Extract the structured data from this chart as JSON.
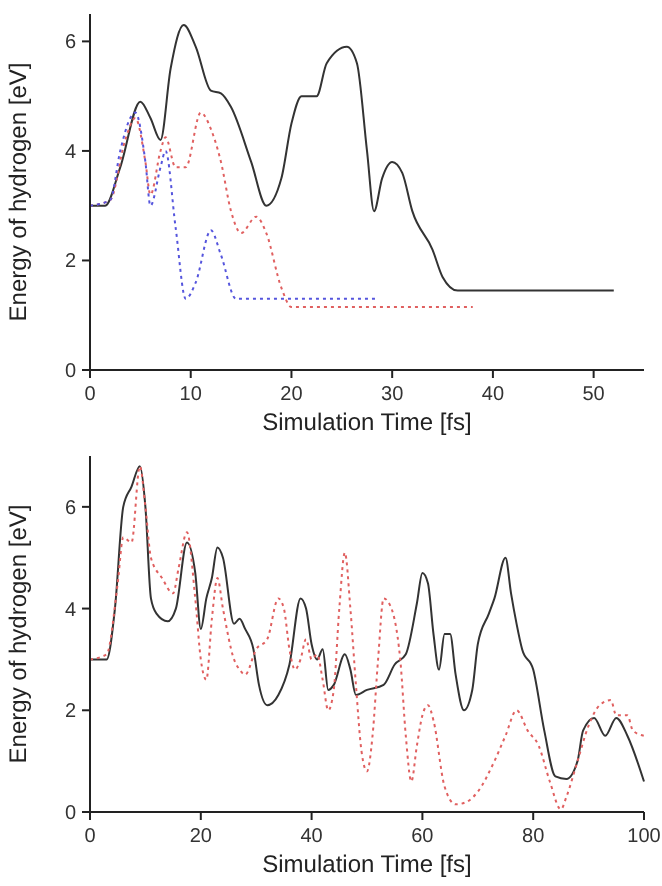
{
  "chart_data": [
    {
      "type": "line",
      "xlabel": "Simulation Time [fs]",
      "ylabel": "Energy of hydrogen [eV]",
      "xlim": [
        0,
        55
      ],
      "xticks": [
        0,
        10,
        20,
        30,
        40,
        50
      ],
      "ylim": [
        0,
        6.5
      ],
      "yticks": [
        0,
        2,
        4,
        6
      ],
      "grid": false,
      "series": [
        {
          "color": "#333333",
          "line_style": "solid",
          "x": [
            0,
            1.5,
            3,
            5,
            6,
            7,
            8,
            9.3,
            10.5,
            12,
            13,
            14,
            16,
            17.5,
            19,
            20,
            21,
            22.5,
            23.5,
            25.5,
            26.5,
            27.5,
            28.2,
            29,
            30,
            31,
            32,
            34,
            35,
            36.5,
            52
          ],
          "values": [
            3,
            3,
            3.7,
            4.9,
            4.6,
            4.2,
            5.5,
            6.3,
            5.9,
            5.1,
            5.05,
            4.8,
            3.8,
            3,
            3.5,
            4.5,
            5,
            5,
            5.6,
            5.9,
            5.6,
            4,
            2.9,
            3.5,
            3.8,
            3.6,
            2.9,
            2.2,
            1.7,
            1.45,
            1.45
          ]
        },
        {
          "color": "#e06060",
          "line_style": "dotted",
          "x": [
            0,
            2,
            3.5,
            4.5,
            5.5,
            6,
            7,
            7.5,
            8.5,
            9.5,
            11,
            12,
            13,
            14,
            15,
            16.5,
            17.5,
            19,
            20,
            38
          ],
          "values": [
            3,
            3.1,
            4.2,
            4.6,
            3.8,
            3.2,
            4,
            4.25,
            3.7,
            3.7,
            4.7,
            4.4,
            3.8,
            2.9,
            2.5,
            2.8,
            2.5,
            1.5,
            1.15,
            1.15
          ]
        },
        {
          "color": "#5555dd",
          "line_style": "dotted",
          "x": [
            0,
            2,
            3,
            4,
            4.5,
            5.5,
            6,
            7,
            7.5,
            8.5,
            9.5,
            10.5,
            12,
            13,
            14.5,
            28.5
          ],
          "values": [
            3,
            3.1,
            4,
            4.6,
            4.7,
            3.8,
            3,
            3.7,
            4,
            2.6,
            1.3,
            1.6,
            2.55,
            2.1,
            1.3,
            1.3
          ]
        }
      ]
    },
    {
      "type": "line",
      "xlabel": "Simulation Time [fs]",
      "ylabel": "Energy of hydrogen [eV]",
      "xlim": [
        0,
        100
      ],
      "xticks": [
        0,
        20,
        40,
        60,
        80,
        100
      ],
      "ylim": [
        0,
        7
      ],
      "yticks": [
        0,
        2,
        4,
        6
      ],
      "grid": false,
      "series": [
        {
          "color": "#333333",
          "line_style": "solid",
          "x": [
            0,
            3,
            4.5,
            6,
            7.5,
            9,
            10,
            11,
            12,
            14,
            15.5,
            17.5,
            19,
            20,
            21,
            22,
            23,
            24,
            26,
            27,
            28,
            29.5,
            30.5,
            32,
            34,
            36,
            38,
            39,
            40,
            41,
            42,
            43,
            44,
            46,
            47,
            48,
            50,
            53,
            55,
            57,
            59,
            60,
            61,
            62,
            63,
            64,
            65,
            66,
            67.5,
            69,
            70,
            72,
            73,
            75,
            76,
            77,
            78,
            80,
            82,
            84,
            86,
            88,
            89,
            91,
            93,
            95,
            97,
            100
          ],
          "values": [
            3,
            3,
            4,
            6,
            6.4,
            6.8,
            6,
            4.2,
            3.9,
            3.75,
            4,
            5.3,
            4.7,
            3.6,
            4.2,
            4.6,
            5.2,
            5,
            3.7,
            3.8,
            3.6,
            3.2,
            2.5,
            2.1,
            2.3,
            2.9,
            4.2,
            4,
            3.3,
            3,
            3.2,
            2.4,
            2.5,
            3.1,
            2.8,
            2.3,
            2.4,
            2.5,
            2.9,
            3.1,
            4.1,
            4.7,
            4.5,
            3.5,
            2.8,
            3.5,
            3.5,
            2.7,
            2,
            2.4,
            3.3,
            3.9,
            4.2,
            5,
            4.3,
            3.7,
            3.2,
            2.8,
            1.6,
            0.7,
            0.65,
            1,
            1.6,
            1.85,
            1.5,
            1.85,
            1.5,
            0.6
          ]
        },
        {
          "color": "#e06060",
          "line_style": "dotted",
          "x": [
            0,
            3,
            5,
            6,
            7.5,
            9,
            10,
            11,
            13,
            15,
            16,
            17.5,
            19,
            20,
            21,
            22,
            23,
            24,
            26,
            27,
            28,
            30,
            32,
            34,
            35,
            36,
            37,
            38,
            39,
            40,
            41,
            42,
            43,
            44,
            45,
            46,
            47,
            48,
            49,
            50,
            51,
            52,
            53,
            54,
            56,
            57,
            58,
            59,
            60,
            61,
            62,
            64,
            66,
            68,
            70,
            73,
            75,
            77,
            79,
            81,
            83,
            85,
            86,
            88,
            90,
            92,
            94,
            95,
            97,
            98,
            100
          ],
          "values": [
            3,
            3.1,
            4.5,
            5.4,
            5.3,
            6.8,
            6,
            5,
            4.6,
            4.3,
            4.8,
            5.5,
            4.2,
            3,
            2.6,
            3.8,
            4.6,
            4,
            3,
            2.8,
            2.7,
            3.2,
            3.4,
            4.2,
            4,
            3.2,
            2.8,
            3,
            3.4,
            3,
            3.1,
            2.6,
            2,
            2.4,
            4,
            5.1,
            4,
            2.5,
            1.2,
            0.8,
            1.5,
            3,
            4.2,
            4.1,
            3,
            1.5,
            0.6,
            1.3,
            1.9,
            2.1,
            1.8,
            0.5,
            0.15,
            0.2,
            0.4,
            1,
            1.5,
            2,
            1.6,
            1.3,
            0.6,
            0.05,
            0.3,
            1,
            1.7,
            2.1,
            2.2,
            1.9,
            1.9,
            1.6,
            1.5
          ]
        }
      ]
    }
  ]
}
